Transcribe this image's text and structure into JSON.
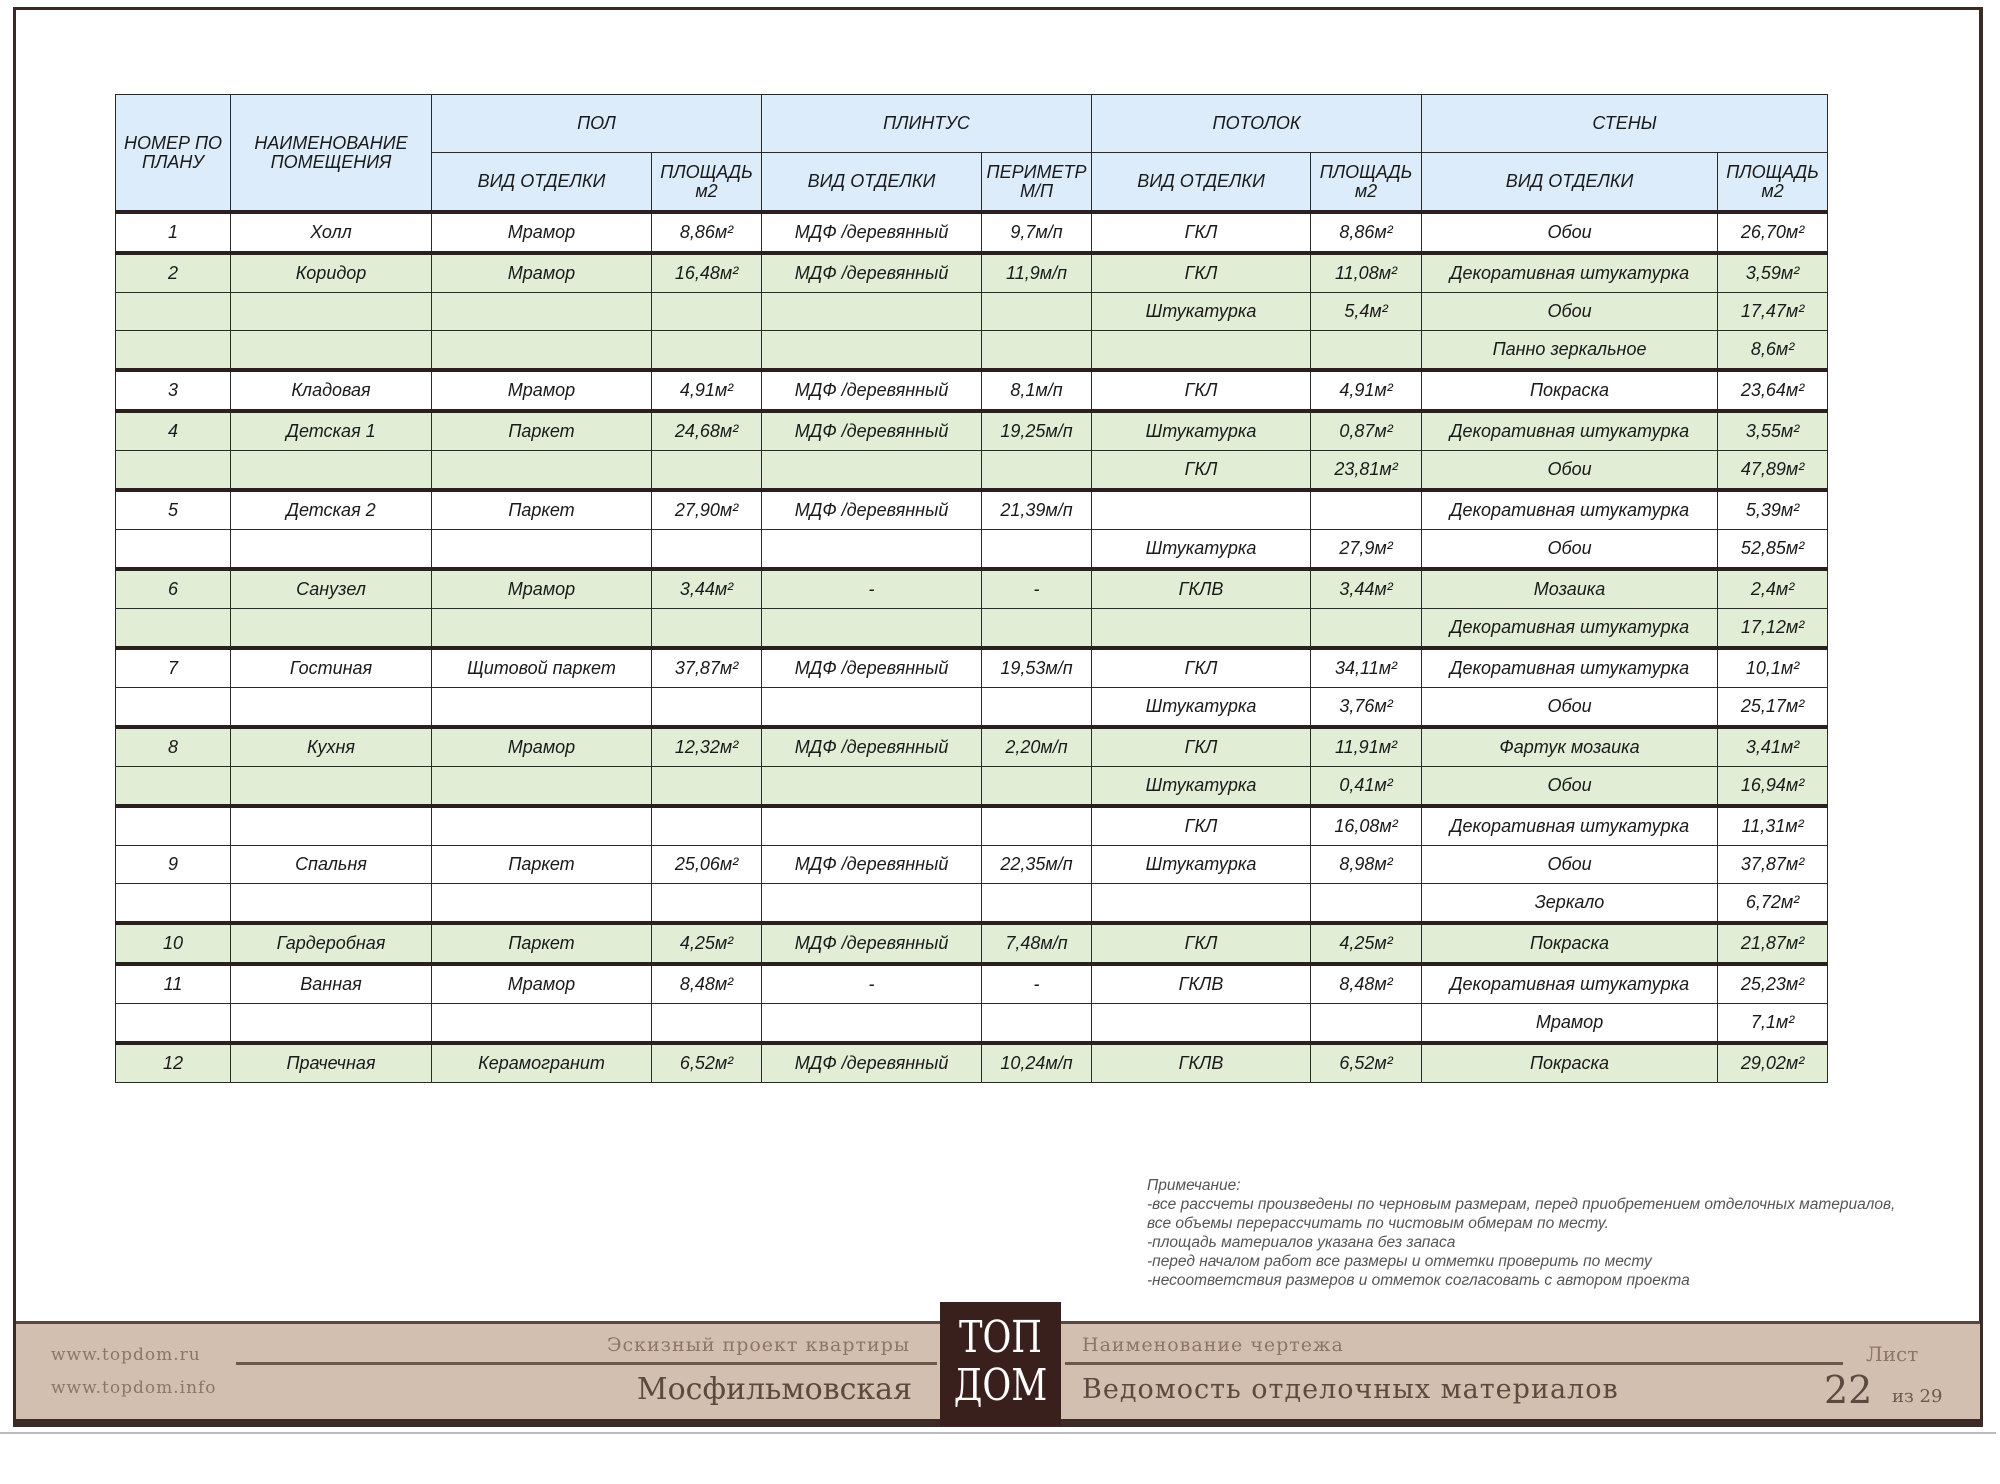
{
  "table": {
    "headers": {
      "number": "НОМЕР ПО ПЛАНУ",
      "room_name": "НАИМЕНОВАНИЕ ПОМЕЩЕНИЯ",
      "floor": "ПОЛ",
      "plinth": "ПЛИНТУС",
      "ceiling": "ПОТОЛОК",
      "walls": "СТЕНЫ",
      "finish_type": "ВИД ОТДЕЛКИ",
      "area_m2": "ПЛОЩАДЬ м2",
      "perimeter": "ПЕРИМЕТР М/П"
    },
    "groups": [
      {
        "shade": "white",
        "rows": [
          [
            "1",
            "Холл",
            "Мрамор",
            "8,86м²",
            "МДФ /деревянный",
            "9,7м/п",
            "ГКЛ",
            "8,86м²",
            "Обои",
            "26,70м²"
          ]
        ]
      },
      {
        "shade": "green",
        "rows": [
          [
            "2",
            "Коридор",
            "Мрамор",
            "16,48м²",
            "МДФ /деревянный",
            "11,9м/п",
            "ГКЛ",
            "11,08м²",
            "Декоративная штукатурка",
            "3,59м²"
          ],
          [
            "",
            "",
            "",
            "",
            "",
            "",
            "Штукатурка",
            "5,4м²",
            "Обои",
            "17,47м²"
          ],
          [
            "",
            "",
            "",
            "",
            "",
            "",
            "",
            "",
            "Панно зеркальное",
            "8,6м²"
          ]
        ]
      },
      {
        "shade": "white",
        "rows": [
          [
            "3",
            "Кладовая",
            "Мрамор",
            "4,91м²",
            "МДФ /деревянный",
            "8,1м/п",
            "ГКЛ",
            "4,91м²",
            "Покраска",
            "23,64м²"
          ]
        ]
      },
      {
        "shade": "green",
        "rows": [
          [
            "4",
            "Детская 1",
            "Паркет",
            "24,68м²",
            "МДФ /деревянный",
            "19,25м/п",
            "Штукатурка",
            "0,87м²",
            "Декоративная штукатурка",
            "3,55м²"
          ],
          [
            "",
            "",
            "",
            "",
            "",
            "",
            "ГКЛ",
            "23,81м²",
            "Обои",
            "47,89м²"
          ]
        ]
      },
      {
        "shade": "white",
        "rows": [
          [
            "5",
            "Детская 2",
            "Паркет",
            "27,90м²",
            "МДФ /деревянный",
            "21,39м/п",
            "",
            "",
            "Декоративная штукатурка",
            "5,39м²"
          ],
          [
            "",
            "",
            "",
            "",
            "",
            "",
            "Штукатурка",
            "27,9м²",
            "Обои",
            "52,85м²"
          ]
        ]
      },
      {
        "shade": "green",
        "rows": [
          [
            "6",
            "Санузел",
            "Мрамор",
            "3,44м²",
            "-",
            "-",
            "ГКЛВ",
            "3,44м²",
            "Мозаика",
            "2,4м²"
          ],
          [
            "",
            "",
            "",
            "",
            "",
            "",
            "",
            "",
            "Декоративная штукатурка",
            "17,12м²"
          ]
        ]
      },
      {
        "shade": "white",
        "rows": [
          [
            "7",
            "Гостиная",
            "Щитовой паркет",
            "37,87м²",
            "МДФ /деревянный",
            "19,53м/п",
            "ГКЛ",
            "34,11м²",
            "Декоративная штукатурка",
            "10,1м²"
          ],
          [
            "",
            "",
            "",
            "",
            "",
            "",
            "Штукатурка",
            "3,76м²",
            "Обои",
            "25,17м²"
          ]
        ]
      },
      {
        "shade": "green",
        "rows": [
          [
            "8",
            "Кухня",
            "Мрамор",
            "12,32м²",
            "МДФ /деревянный",
            "2,20м/п",
            "ГКЛ",
            "11,91м²",
            "Фартук мозаика",
            "3,41м²"
          ],
          [
            "",
            "",
            "",
            "",
            "",
            "",
            "Штукатурка",
            "0,41м²",
            "Обои",
            "16,94м²"
          ]
        ]
      },
      {
        "shade": "white",
        "rows": [
          [
            "",
            "",
            "",
            "",
            "",
            "",
            "ГКЛ",
            "16,08м²",
            "Декоративная штукатурка",
            "11,31м²"
          ],
          [
            "9",
            "Спальня",
            "Паркет",
            "25,06м²",
            "МДФ /деревянный",
            "22,35м/п",
            "Штукатурка",
            "8,98м²",
            "Обои",
            "37,87м²"
          ],
          [
            "",
            "",
            "",
            "",
            "",
            "",
            "",
            "",
            "Зеркало",
            "6,72м²"
          ]
        ]
      },
      {
        "shade": "green",
        "rows": [
          [
            "10",
            "Гардеробная",
            "Паркет",
            "4,25м²",
            "МДФ /деревянный",
            "7,48м/п",
            "ГКЛ",
            "4,25м²",
            "Покраска",
            "21,87м²"
          ]
        ]
      },
      {
        "shade": "white",
        "rows": [
          [
            "11",
            "Ванная",
            "Мрамор",
            "8,48м²",
            "-",
            "-",
            "ГКЛВ",
            "8,48м²",
            "Декоративная штукатурка",
            "25,23м²"
          ],
          [
            "",
            "",
            "",
            "",
            "",
            "",
            "",
            "",
            "Мрамор",
            "7,1м²"
          ]
        ]
      },
      {
        "shade": "green",
        "rows": [
          [
            "12",
            "Прачечная",
            "Керамогранит",
            "6,52м²",
            "МДФ /деревянный",
            "10,24м/п",
            "ГКЛВ",
            "6,52м²",
            "Покраска",
            "29,02м²"
          ]
        ]
      }
    ]
  },
  "notes": {
    "title": "Примечание:",
    "lines": [
      "-все рассчеты произведены по черновым размерам, перед приобретением отделочных материалов,",
      "все объемы перерассчитать по чистовым обмерам по месту.",
      "-площадь материалов указана без запаса",
      "-перед началом работ все размеры и отметки проверить по месту",
      "-несоответствия размеров и отметок согласовать с автором проекта"
    ]
  },
  "footer": {
    "site1": "www.topdom.ru",
    "site2": "www.topdom.info",
    "project_label": "Эскизный проект квартиры",
    "project_name": "Мосфильмовская",
    "logo_line1": "ТОП",
    "logo_line2": "ДОМ",
    "drawing_label": "Наименование чертежа",
    "drawing_name": "Ведомость отделочных материалов",
    "sheet_label": "Лист",
    "sheet_number": "22",
    "sheet_of": "из 29"
  },
  "colors": {
    "header_bg": "#dcecfa",
    "group_green": "#e2edd6",
    "footer_bg": "#d3bfb0",
    "logo_bg": "#3a201c"
  }
}
